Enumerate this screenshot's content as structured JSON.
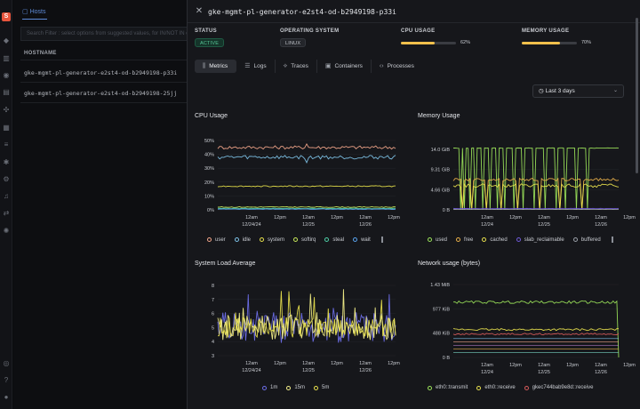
{
  "background": {
    "tab": "Hosts",
    "search_placeholder": "Search Filter : select options from suggested values, for IN/NOT IN operators - press Enter after selecting options",
    "column_header": "HOSTNAME",
    "rows": [
      "gke-mgmt-pl-generator-e2st4-od-b2949198-p33i",
      "gke-mgmt-pl-generator-e2st4-od-b2949198-25jj"
    ]
  },
  "drawer": {
    "title": "gke-mgmt-pl-generator-e2st4-od-b2949198-p33i",
    "status_label": "STATUS",
    "status_value": "ACTIVE",
    "os_label": "OPERATING SYSTEM",
    "os_value": "LINUX",
    "cpu_label": "CPU USAGE",
    "cpu_value": "62%",
    "cpu_fraction": 0.62,
    "mem_label": "MEMORY USAGE",
    "mem_value": "70%",
    "mem_fraction": 0.7,
    "tabs": [
      {
        "label": "Metrics",
        "icon": "bar-chart-icon"
      },
      {
        "label": "Logs",
        "icon": "logs-icon"
      },
      {
        "label": "Traces",
        "icon": "traces-icon"
      },
      {
        "label": "Containers",
        "icon": "container-icon"
      },
      {
        "label": "Processes",
        "icon": "code-icon"
      }
    ],
    "time_range": "Last 3 days"
  },
  "colors": {
    "accent": "#5e8bd8",
    "active": "#56c596",
    "bar": "#f1c04c"
  },
  "chart_data": [
    {
      "id": "cpu",
      "type": "line",
      "title": "CPU Usage",
      "y_ticks": [
        "50%",
        "40%",
        "30%",
        "20%",
        "10%",
        "0%"
      ],
      "ylim": [
        0,
        50
      ],
      "x_ticks": [
        [
          "12am",
          "12/24/24"
        ],
        [
          "12pm",
          ""
        ],
        [
          "12am",
          "12/25"
        ],
        [
          "12pm",
          ""
        ],
        [
          "12am",
          "12/26"
        ],
        [
          "12pm",
          ""
        ]
      ],
      "series": [
        {
          "name": "user",
          "color": "#f2a58a",
          "level": 45,
          "noise": 1.2
        },
        {
          "name": "idle",
          "color": "#7ec3e8",
          "level": 38,
          "noise": 1.4
        },
        {
          "name": "system",
          "color": "#e6e04a",
          "level": 17,
          "noise": 0.4
        },
        {
          "name": "softirq",
          "color": "#c9ea5a",
          "level": 2,
          "noise": 0.3
        },
        {
          "name": "steal",
          "color": "#4fd1a8",
          "level": 1,
          "noise": 0.2
        },
        {
          "name": "wait",
          "color": "#5aa5f0",
          "level": 0.5,
          "noise": 0.2
        }
      ]
    },
    {
      "id": "mem",
      "type": "line",
      "title": "Memory Usage",
      "y_ticks": [
        "14.0 GiB",
        "9.31 GiB",
        "4.66 GiB",
        "0 B"
      ],
      "ylim": [
        0,
        14
      ],
      "x_ticks": [
        [
          "12am",
          "12/24"
        ],
        [
          "12pm",
          ""
        ],
        [
          "12am",
          "12/25"
        ],
        [
          "12pm",
          ""
        ],
        [
          "12am",
          "12/26"
        ],
        [
          "12pm",
          ""
        ]
      ],
      "series": [
        {
          "name": "used",
          "color": "#9be35a",
          "level": 14.3,
          "noise": 0.05
        },
        {
          "name": "free",
          "color": "#e9b04a",
          "level": 7.0,
          "noise": 0.3
        },
        {
          "name": "cached",
          "color": "#e8e04d",
          "level": 5.6,
          "noise": 0.4
        },
        {
          "name": "slab_reclaimable",
          "color": "#6f5ad8",
          "level": 0.3,
          "noise": 0.05
        },
        {
          "name": "buffered",
          "color": "#9aa0a8",
          "level": 0.1,
          "noise": 0.02
        }
      ]
    },
    {
      "id": "load",
      "type": "line",
      "title": "System Load Average",
      "y_ticks": [
        "8",
        "7",
        "6",
        "5",
        "4",
        "3"
      ],
      "ylim": [
        3,
        8
      ],
      "x_ticks": [
        [
          "12am",
          "12/24/24"
        ],
        [
          "12pm",
          ""
        ],
        [
          "12am",
          "12/25"
        ],
        [
          "12pm",
          ""
        ],
        [
          "12am",
          "12/26"
        ],
        [
          "12pm",
          ""
        ]
      ],
      "series": [
        {
          "name": "1m",
          "color": "#6d6ee8",
          "level": 5.0,
          "noise": 1.1
        },
        {
          "name": "15m",
          "color": "#f4f08a",
          "level": 5.0,
          "noise": 0.9
        },
        {
          "name": "5m",
          "color": "#e8e04d",
          "level": 5.0,
          "noise": 0.7
        }
      ]
    },
    {
      "id": "net",
      "type": "line",
      "title": "Network usage (bytes)",
      "y_ticks": [
        "1.43 MiB",
        "977 KiB",
        "488 KiB",
        "0 B"
      ],
      "ylim": [
        0,
        1465
      ],
      "x_ticks": [
        [
          "12am",
          "12/24"
        ],
        [
          "12pm",
          ""
        ],
        [
          "12am",
          "12/25"
        ],
        [
          "12pm",
          ""
        ],
        [
          "12am",
          "12/26"
        ],
        [
          "12pm",
          ""
        ]
      ],
      "series": [
        {
          "name": "eth0::transmit",
          "color": "#9be35a",
          "level": 1110,
          "noise": 25
        },
        {
          "name": "eth0::receive",
          "color": "#e8e04d",
          "level": 560,
          "noise": 20
        },
        {
          "name": "gkec744bab9e8d::receive",
          "color": "#d65a5a",
          "level": 470,
          "noise": 18
        }
      ]
    }
  ]
}
